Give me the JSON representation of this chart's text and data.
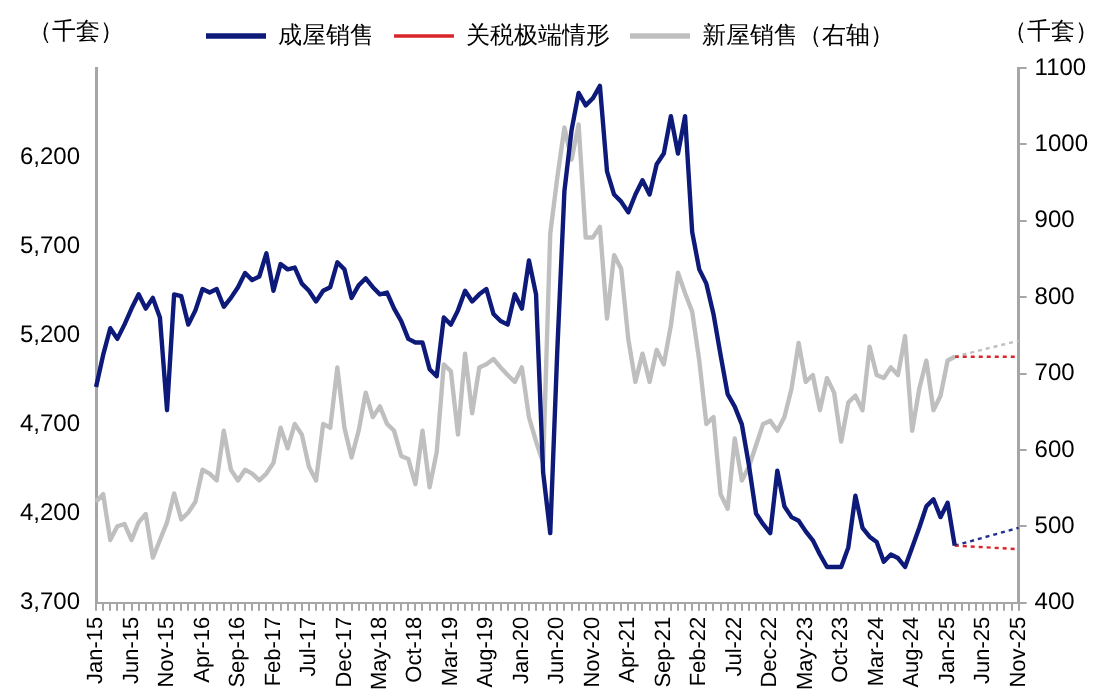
{
  "chart_data": {
    "type": "line",
    "ylabel": "（千套）",
    "y2label": "（千套）",
    "legend": "top",
    "marker": "none",
    "categories": [
      "Jan-15",
      null,
      null,
      null,
      null,
      "Jun-15",
      null,
      null,
      null,
      null,
      "Nov-15",
      null,
      null,
      null,
      null,
      "Apr-16",
      null,
      null,
      null,
      null,
      "Sep-16",
      null,
      null,
      null,
      null,
      "Feb-17",
      null,
      null,
      null,
      null,
      "Jul-17",
      null,
      null,
      null,
      null,
      "Dec-17",
      null,
      null,
      null,
      null,
      "May-18",
      null,
      null,
      null,
      null,
      "Oct-18",
      null,
      null,
      null,
      null,
      "Mar-19",
      null,
      null,
      null,
      null,
      "Aug-19",
      null,
      null,
      null,
      null,
      "Jan-20",
      null,
      null,
      null,
      null,
      "Jun-20",
      null,
      null,
      null,
      null,
      "Nov-20",
      null,
      null,
      null,
      null,
      "Apr-21",
      null,
      null,
      null,
      null,
      "Sep-21",
      null,
      null,
      null,
      null,
      "Feb-22",
      null,
      null,
      null,
      null,
      "Jul-22",
      null,
      null,
      null,
      null,
      "Dec-22",
      null,
      null,
      null,
      null,
      "May-23",
      null,
      null,
      null,
      null,
      "Oct-23",
      null,
      null,
      null,
      null,
      "Mar-24",
      null,
      null,
      null,
      null,
      "Aug-24",
      null,
      null,
      null,
      null,
      "Jan-25",
      null,
      null,
      null,
      null,
      "Jun-25",
      null,
      null,
      null,
      null,
      "Nov-25"
    ],
    "ylim": [
      3700,
      6700
    ],
    "yticks": [
      {
        "value": 3700,
        "label": "3,700"
      },
      {
        "value": 4200,
        "label": "4,200"
      },
      {
        "value": 4700,
        "label": "4,700"
      },
      {
        "value": 5200,
        "label": "5,200"
      },
      {
        "value": 5700,
        "label": "5,700"
      },
      {
        "value": 6200,
        "label": "6,200"
      }
    ],
    "y2lim": [
      400,
      1100
    ],
    "y2ticks": [
      400,
      500,
      600,
      700,
      800,
      900,
      1000,
      1100
    ],
    "series": [
      {
        "name": "成屋销售",
        "color": "#0d1a7a",
        "line_style": "solid",
        "values": [
          4910,
          5090,
          5240,
          5180,
          5260,
          5350,
          5430,
          5350,
          5410,
          5300,
          4780,
          5430,
          5420,
          5260,
          5340,
          5460,
          5440,
          5460,
          5360,
          5410,
          5470,
          5550,
          5510,
          5530,
          5660,
          5450,
          5600,
          5570,
          5580,
          5490,
          5450,
          5390,
          5450,
          5470,
          5610,
          5570,
          5410,
          5480,
          5520,
          5470,
          5430,
          5440,
          5350,
          5280,
          5180,
          5160,
          5160,
          5010,
          4970,
          5300,
          5260,
          5340,
          5450,
          5390,
          5430,
          5460,
          5320,
          5280,
          5260,
          5430,
          5350,
          5620,
          5430,
          4430,
          4090,
          5120,
          6010,
          6350,
          6560,
          6490,
          6530,
          6600,
          6120,
          5990,
          5950,
          5890,
          5990,
          6070,
          5990,
          6160,
          6220,
          6430,
          6220,
          6430,
          5780,
          5570,
          5490,
          5320,
          5090,
          4870,
          4800,
          4700,
          4470,
          4200,
          4140,
          4090,
          4440,
          4240,
          4180,
          4160,
          4100,
          4050,
          3970,
          3900,
          3900,
          3900,
          4010,
          4300,
          4120,
          4070,
          4040,
          3930,
          3970,
          3950,
          3900,
          4010,
          4120,
          4240,
          4280,
          4180,
          4260,
          4020,
          null,
          null,
          null,
          null,
          null,
          null,
          null,
          null,
          null
        ]
      },
      {
        "name": "关税极端情形",
        "color": "#d9262a",
        "line_style": "dotted",
        "values": [
          null,
          null,
          null,
          null,
          null,
          null,
          null,
          null,
          null,
          null,
          null,
          null,
          null,
          null,
          null,
          null,
          null,
          null,
          null,
          null,
          null,
          null,
          null,
          null,
          null,
          null,
          null,
          null,
          null,
          null,
          null,
          null,
          null,
          null,
          null,
          null,
          null,
          null,
          null,
          null,
          null,
          null,
          null,
          null,
          null,
          null,
          null,
          null,
          null,
          null,
          null,
          null,
          null,
          null,
          null,
          null,
          null,
          null,
          null,
          null,
          null,
          null,
          null,
          null,
          null,
          null,
          null,
          null,
          null,
          null,
          null,
          null,
          null,
          null,
          null,
          null,
          null,
          null,
          null,
          null,
          null,
          null,
          null,
          null,
          null,
          null,
          null,
          null,
          null,
          null,
          null,
          null,
          null,
          null,
          null,
          null,
          null,
          null,
          null,
          null,
          null,
          null,
          null,
          null,
          null,
          null,
          null,
          null,
          null,
          null,
          null,
          null,
          null,
          null,
          null,
          null,
          null,
          null,
          null,
          null,
          null,
          4020,
          null,
          null,
          null,
          null,
          null,
          null,
          null,
          null,
          4000
        ]
      },
      {
        "color": "#1f2f8f",
        "line_style": "dotted",
        "values": [
          null,
          null,
          null,
          null,
          null,
          null,
          null,
          null,
          null,
          null,
          null,
          null,
          null,
          null,
          null,
          null,
          null,
          null,
          null,
          null,
          null,
          null,
          null,
          null,
          null,
          null,
          null,
          null,
          null,
          null,
          null,
          null,
          null,
          null,
          null,
          null,
          null,
          null,
          null,
          null,
          null,
          null,
          null,
          null,
          null,
          null,
          null,
          null,
          null,
          null,
          null,
          null,
          null,
          null,
          null,
          null,
          null,
          null,
          null,
          null,
          null,
          null,
          null,
          null,
          null,
          null,
          null,
          null,
          null,
          null,
          null,
          null,
          null,
          null,
          null,
          null,
          null,
          null,
          null,
          null,
          null,
          null,
          null,
          null,
          null,
          null,
          null,
          null,
          null,
          null,
          null,
          null,
          null,
          null,
          null,
          null,
          null,
          null,
          null,
          null,
          null,
          null,
          null,
          null,
          null,
          null,
          null,
          null,
          null,
          null,
          null,
          null,
          null,
          null,
          null,
          null,
          null,
          null,
          null,
          null,
          null,
          4020,
          null,
          null,
          null,
          null,
          null,
          null,
          null,
          null,
          4120
        ]
      },
      {
        "name": "新屋销售（右轴）",
        "color": "#bfbfbf",
        "line_style": "solid",
        "axis": "y2",
        "values": [
          532,
          542,
          482,
          500,
          503,
          482,
          505,
          516,
          459,
          482,
          505,
          543,
          509,
          518,
          532,
          574,
          569,
          560,
          625,
          574,
          560,
          574,
          569,
          560,
          569,
          583,
          629,
          602,
          634,
          620,
          578,
          560,
          634,
          629,
          708,
          629,
          590,
          625,
          675,
          643,
          657,
          634,
          625,
          592,
          588,
          555,
          625,
          551,
          597,
          712,
          703,
          620,
          726,
          648,
          708,
          712,
          719,
          708,
          698,
          689,
          708,
          643,
          611,
          583,
          883,
          957,
          1022,
          980,
          1026,
          878,
          878,
          892,
          772,
          855,
          837,
          745,
          689,
          726,
          689,
          731,
          712,
          763,
          832,
          805,
          781,
          717,
          634,
          643,
          542,
          523,
          615,
          560,
          578,
          606,
          634,
          638,
          625,
          643,
          680,
          740,
          689,
          698,
          652,
          694,
          675,
          611,
          662,
          671,
          652,
          735,
          698,
          694,
          708,
          698,
          749,
          625,
          680,
          717,
          652,
          671,
          717,
          722,
          null,
          null,
          null,
          null,
          null,
          null,
          null,
          null,
          null
        ]
      },
      {
        "color": "#d9262a",
        "line_style": "dotted",
        "axis": "y2",
        "values": [
          null,
          null,
          null,
          null,
          null,
          null,
          null,
          null,
          null,
          null,
          null,
          null,
          null,
          null,
          null,
          null,
          null,
          null,
          null,
          null,
          null,
          null,
          null,
          null,
          null,
          null,
          null,
          null,
          null,
          null,
          null,
          null,
          null,
          null,
          null,
          null,
          null,
          null,
          null,
          null,
          null,
          null,
          null,
          null,
          null,
          null,
          null,
          null,
          null,
          null,
          null,
          null,
          null,
          null,
          null,
          null,
          null,
          null,
          null,
          null,
          null,
          null,
          null,
          null,
          null,
          null,
          null,
          null,
          null,
          null,
          null,
          null,
          null,
          null,
          null,
          null,
          null,
          null,
          null,
          null,
          null,
          null,
          null,
          null,
          null,
          null,
          null,
          null,
          null,
          null,
          null,
          null,
          null,
          null,
          null,
          null,
          null,
          null,
          null,
          null,
          null,
          null,
          null,
          null,
          null,
          null,
          null,
          null,
          null,
          null,
          null,
          null,
          null,
          null,
          null,
          null,
          null,
          null,
          null,
          null,
          null,
          722,
          null,
          null,
          null,
          null,
          null,
          null,
          null,
          null,
          722
        ]
      },
      {
        "color": "#bfbfbf",
        "line_style": "dotted",
        "axis": "y2",
        "values": [
          null,
          null,
          null,
          null,
          null,
          null,
          null,
          null,
          null,
          null,
          null,
          null,
          null,
          null,
          null,
          null,
          null,
          null,
          null,
          null,
          null,
          null,
          null,
          null,
          null,
          null,
          null,
          null,
          null,
          null,
          null,
          null,
          null,
          null,
          null,
          null,
          null,
          null,
          null,
          null,
          null,
          null,
          null,
          null,
          null,
          null,
          null,
          null,
          null,
          null,
          null,
          null,
          null,
          null,
          null,
          null,
          null,
          null,
          null,
          null,
          null,
          null,
          null,
          null,
          null,
          null,
          null,
          null,
          null,
          null,
          null,
          null,
          null,
          null,
          null,
          null,
          null,
          null,
          null,
          null,
          null,
          null,
          null,
          null,
          null,
          null,
          null,
          null,
          null,
          null,
          null,
          null,
          null,
          null,
          null,
          null,
          null,
          null,
          null,
          null,
          null,
          null,
          null,
          null,
          null,
          null,
          null,
          null,
          null,
          null,
          null,
          null,
          null,
          null,
          null,
          null,
          null,
          null,
          null,
          null,
          null,
          722,
          null,
          null,
          null,
          null,
          null,
          null,
          null,
          null,
          743
        ]
      }
    ]
  }
}
